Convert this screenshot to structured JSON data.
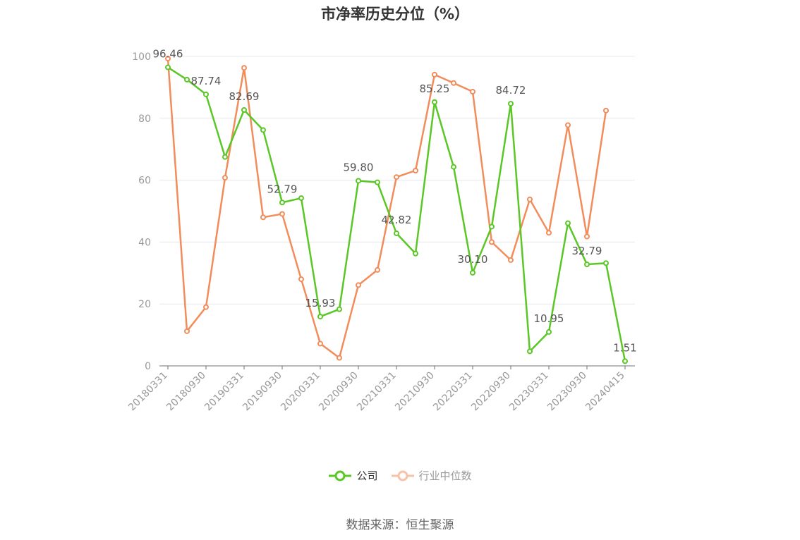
{
  "chart_data": {
    "type": "line",
    "title": "市净率历史分位（%）",
    "xlabel": "",
    "ylabel": "",
    "ylim": [
      0,
      100
    ],
    "yticks": [
      "0",
      "20",
      "40",
      "60",
      "80",
      "100"
    ],
    "x": [
      "20180331",
      "20180630",
      "20180930",
      "20181231",
      "20190331",
      "20190630",
      "20190930",
      "20191231",
      "20200331",
      "20200630",
      "20200930",
      "20201231",
      "20210331",
      "20210630",
      "20210930",
      "20211231",
      "20220331",
      "20220630",
      "20220930",
      "20221231",
      "20230331",
      "20230630",
      "20230930",
      "20231231",
      "20240415"
    ],
    "x_tick_labels": [
      "20180331",
      "20180930",
      "20190331",
      "20190930",
      "20200331",
      "20200930",
      "20210331",
      "20210930",
      "20220331",
      "20220930",
      "20230331",
      "20230930",
      "20240415"
    ],
    "grid": true,
    "legend_position": "bottom",
    "series": [
      {
        "name": "公司",
        "color": "#5ac727",
        "values": [
          96.46,
          92.5,
          87.74,
          67.5,
          82.69,
          76.2,
          52.79,
          54.2,
          15.93,
          18.3,
          59.8,
          59.3,
          42.82,
          36.3,
          85.25,
          64.3,
          30.1,
          45.0,
          84.72,
          4.7,
          10.95,
          46.1,
          32.79,
          33.2,
          1.51
        ]
      },
      {
        "name": "行业中位数",
        "color": "#f28c5b",
        "values": [
          99.3,
          11.2,
          19.0,
          60.8,
          96.3,
          48.0,
          49.1,
          28.0,
          7.2,
          2.6,
          26.1,
          31.0,
          61.0,
          63.1,
          94.1,
          91.4,
          88.6,
          40.0,
          34.2,
          53.8,
          43.0,
          77.8,
          41.8,
          82.5,
          null
        ]
      }
    ],
    "data_labels": [
      {
        "index": 0,
        "text": "96.46"
      },
      {
        "index": 2,
        "text": "87.74"
      },
      {
        "index": 4,
        "text": "82.69"
      },
      {
        "index": 6,
        "text": "52.79"
      },
      {
        "index": 8,
        "text": "15.93"
      },
      {
        "index": 10,
        "text": "59.80"
      },
      {
        "index": 12,
        "text": "42.82"
      },
      {
        "index": 14,
        "text": "85.25"
      },
      {
        "index": 16,
        "text": "30.10"
      },
      {
        "index": 18,
        "text": "84.72"
      },
      {
        "index": 20,
        "text": "10.95"
      },
      {
        "index": 22,
        "text": "32.79"
      },
      {
        "index": 24,
        "text": "1.51"
      }
    ]
  },
  "legend": {
    "company_label": "公司",
    "industry_label": "行业中位数",
    "company_color": "#5ac727",
    "industry_color": "#f28c5b"
  },
  "source": "数据来源：恒生聚源"
}
